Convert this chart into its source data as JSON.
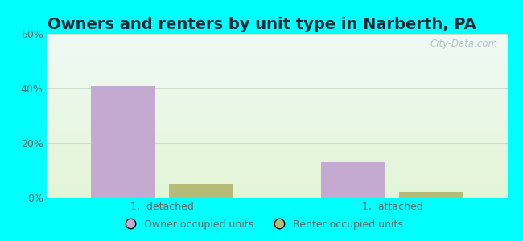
{
  "title": "Owners and renters by unit type in Narberth, PA",
  "categories": [
    "1,  detached",
    "1,  attached"
  ],
  "owner_values": [
    41,
    13
  ],
  "renter_values": [
    5,
    2
  ],
  "owner_color": "#c4aad0",
  "renter_color": "#b5bc7a",
  "ylim": [
    0,
    60
  ],
  "yticks": [
    0,
    20,
    40,
    60
  ],
  "ytick_labels": [
    "0%",
    "20%",
    "40%",
    "60%"
  ],
  "bar_width": 0.28,
  "bg_cyan": "#00ffff",
  "legend_owner": "Owner occupied units",
  "legend_renter": "Renter occupied units",
  "watermark": "City-Data.com",
  "title_fontsize": 14,
  "tick_fontsize": 9,
  "legend_fontsize": 9,
  "title_color": "#1a2a3a",
  "tick_color": "#666666",
  "grid_color": "#ccddcc"
}
